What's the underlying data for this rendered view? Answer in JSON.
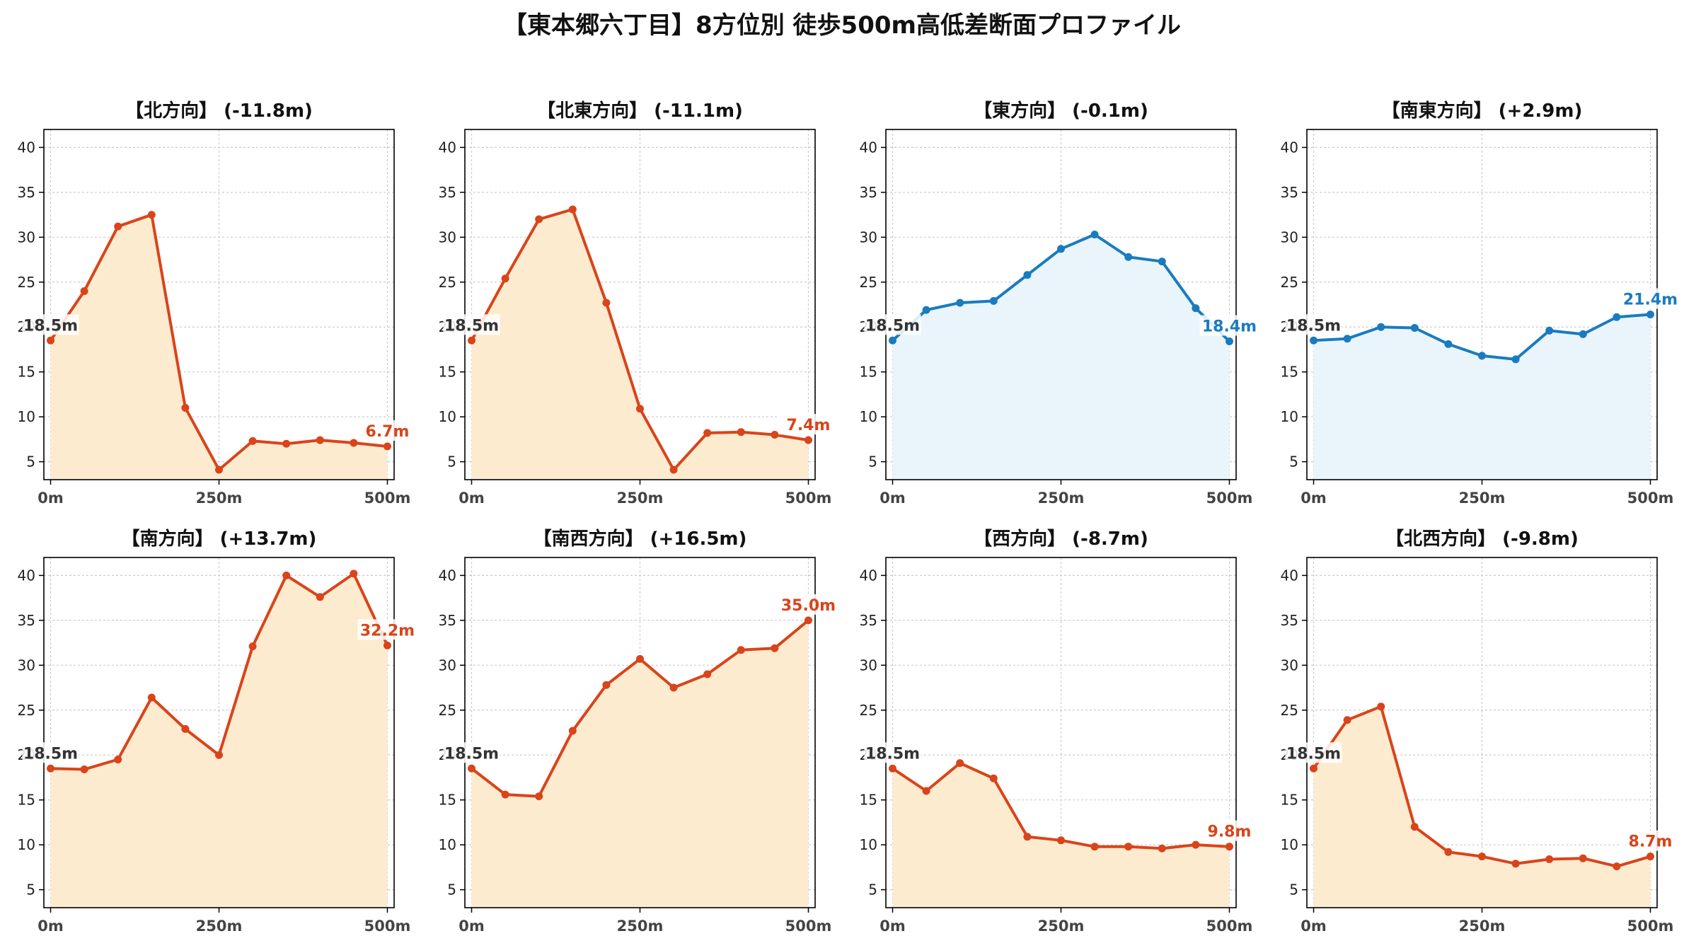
{
  "title": "【東本郷六丁目】8方位別 徒歩500m高低差断面プロファイル",
  "colors": {
    "decline_line": "#d9441a",
    "decline_fill": "#fdebd0",
    "incline_line": "#1a7bbf",
    "incline_fill": "#e9f5fb",
    "start_label": "#333333",
    "axis": "#000000",
    "grid": "#cccccc"
  },
  "chart_data": [
    {
      "type": "area",
      "title": "【北方向】 (-11.8m)",
      "x": [
        0,
        50,
        100,
        150,
        200,
        250,
        300,
        350,
        400,
        450,
        500
      ],
      "series": [
        {
          "values": [
            18.5,
            24.0,
            31.2,
            32.5,
            11.0,
            4.1,
            7.3,
            7.0,
            7.4,
            7.1,
            6.7
          ]
        }
      ],
      "xticks": [
        "0m",
        "250m",
        "500m"
      ],
      "yticks": [
        "5",
        "10",
        "15",
        "20",
        "25",
        "30",
        "35",
        "40"
      ],
      "ylim": [
        3,
        42
      ],
      "start_label": "18.5m",
      "end_label": "6.7m",
      "style": "decline",
      "grid": true
    },
    {
      "type": "area",
      "title": "【北東方向】 (-11.1m)",
      "x": [
        0,
        50,
        100,
        150,
        200,
        250,
        300,
        350,
        400,
        450,
        500
      ],
      "series": [
        {
          "values": [
            18.5,
            25.4,
            32.0,
            33.1,
            22.7,
            10.9,
            4.1,
            8.2,
            8.3,
            8.0,
            7.4
          ]
        }
      ],
      "xticks": [
        "0m",
        "250m",
        "500m"
      ],
      "yticks": [
        "5",
        "10",
        "15",
        "20",
        "25",
        "30",
        "35",
        "40"
      ],
      "ylim": [
        3,
        42
      ],
      "start_label": "18.5m",
      "end_label": "7.4m",
      "style": "decline",
      "grid": true
    },
    {
      "type": "area",
      "title": "【東方向】 (-0.1m)",
      "x": [
        0,
        50,
        100,
        150,
        200,
        250,
        300,
        350,
        400,
        450,
        500
      ],
      "series": [
        {
          "values": [
            18.5,
            21.9,
            22.7,
            22.9,
            25.8,
            28.7,
            30.3,
            27.8,
            27.3,
            22.1,
            18.4
          ]
        }
      ],
      "xticks": [
        "0m",
        "250m",
        "500m"
      ],
      "yticks": [
        "5",
        "10",
        "15",
        "20",
        "25",
        "30",
        "35",
        "40"
      ],
      "ylim": [
        3,
        42
      ],
      "start_label": "18.5m",
      "end_label": "18.4m",
      "style": "incline",
      "grid": true
    },
    {
      "type": "area",
      "title": "【南東方向】 (+2.9m)",
      "x": [
        0,
        50,
        100,
        150,
        200,
        250,
        300,
        350,
        400,
        450,
        500
      ],
      "series": [
        {
          "values": [
            18.5,
            18.7,
            20.0,
            19.9,
            18.1,
            16.8,
            16.4,
            19.6,
            19.2,
            21.1,
            21.4
          ]
        }
      ],
      "xticks": [
        "0m",
        "250m",
        "500m"
      ],
      "yticks": [
        "5",
        "10",
        "15",
        "20",
        "25",
        "30",
        "35",
        "40"
      ],
      "ylim": [
        3,
        42
      ],
      "start_label": "18.5m",
      "end_label": "21.4m",
      "style": "incline",
      "grid": true
    },
    {
      "type": "area",
      "title": "【南方向】 (+13.7m)",
      "x": [
        0,
        50,
        100,
        150,
        200,
        250,
        300,
        350,
        400,
        450,
        500
      ],
      "series": [
        {
          "values": [
            18.5,
            18.4,
            19.5,
            26.4,
            22.9,
            20.0,
            32.1,
            40.0,
            37.6,
            40.2,
            32.2
          ]
        }
      ],
      "xticks": [
        "0m",
        "250m",
        "500m"
      ],
      "yticks": [
        "5",
        "10",
        "15",
        "20",
        "25",
        "30",
        "35",
        "40"
      ],
      "ylim": [
        3,
        42
      ],
      "start_label": "18.5m",
      "end_label": "32.2m",
      "style": "decline",
      "grid": true
    },
    {
      "type": "area",
      "title": "【南西方向】 (+16.5m)",
      "x": [
        0,
        50,
        100,
        150,
        200,
        250,
        300,
        350,
        400,
        450,
        500
      ],
      "series": [
        {
          "values": [
            18.5,
            15.6,
            15.4,
            22.7,
            27.8,
            30.7,
            27.5,
            29.0,
            31.7,
            31.9,
            35.0
          ]
        }
      ],
      "xticks": [
        "0m",
        "250m",
        "500m"
      ],
      "yticks": [
        "5",
        "10",
        "15",
        "20",
        "25",
        "30",
        "35",
        "40"
      ],
      "ylim": [
        3,
        42
      ],
      "start_label": "18.5m",
      "end_label": "35.0m",
      "style": "decline",
      "grid": true
    },
    {
      "type": "area",
      "title": "【西方向】 (-8.7m)",
      "x": [
        0,
        50,
        100,
        150,
        200,
        250,
        300,
        350,
        400,
        450,
        500
      ],
      "series": [
        {
          "values": [
            18.5,
            16.0,
            19.1,
            17.4,
            10.9,
            10.5,
            9.8,
            9.8,
            9.6,
            10.0,
            9.8
          ]
        }
      ],
      "xticks": [
        "0m",
        "250m",
        "500m"
      ],
      "yticks": [
        "5",
        "10",
        "15",
        "20",
        "25",
        "30",
        "35",
        "40"
      ],
      "ylim": [
        3,
        42
      ],
      "start_label": "18.5m",
      "end_label": "9.8m",
      "style": "decline",
      "grid": true
    },
    {
      "type": "area",
      "title": "【北西方向】 (-9.8m)",
      "x": [
        0,
        50,
        100,
        150,
        200,
        250,
        300,
        350,
        400,
        450,
        500
      ],
      "series": [
        {
          "values": [
            18.5,
            23.9,
            25.4,
            12.0,
            9.2,
            8.7,
            7.9,
            8.4,
            8.5,
            7.6,
            8.7
          ]
        }
      ],
      "xticks": [
        "0m",
        "250m",
        "500m"
      ],
      "yticks": [
        "5",
        "10",
        "15",
        "20",
        "25",
        "30",
        "35",
        "40"
      ],
      "ylim": [
        3,
        42
      ],
      "start_label": "18.5m",
      "end_label": "8.7m",
      "style": "decline",
      "grid": true
    }
  ]
}
